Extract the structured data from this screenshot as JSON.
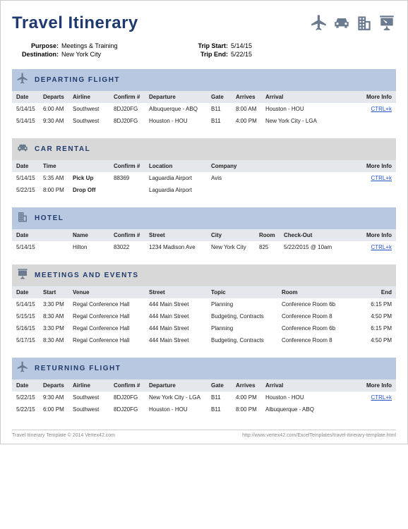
{
  "title": "Travel Itinerary",
  "meta": {
    "purpose_label": "Purpose:",
    "purpose": "Meetings & Training",
    "dest_label": "Destination:",
    "dest": "New York City",
    "start_label": "Trip Start:",
    "start": "5/14/15",
    "end_label": "Trip End:",
    "end": "5/22/15"
  },
  "link_text": "CTRL+k",
  "departing": {
    "title": "DEPARTING FLIGHT",
    "cols": [
      "Date",
      "Departs",
      "Airline",
      "Confirm #",
      "Departure",
      "Gate",
      "Arrives",
      "Arrival",
      "More Info"
    ],
    "rows": [
      [
        "5/14/15",
        "6:00 AM",
        "Southwest",
        "8DJ20FG",
        "Albuquerque - ABQ",
        "B11",
        "8:00 AM",
        "Houston - HOU"
      ],
      [
        "5/14/15",
        "9:30 AM",
        "Southwest",
        "8DJ20FG",
        "Houston - HOU",
        "B11",
        "4:00 PM",
        "New York City - LGA"
      ]
    ]
  },
  "car": {
    "title": "CAR RENTAL",
    "cols": [
      "Date",
      "Time",
      "",
      "Confirm #",
      "Location",
      "Company",
      "More Info"
    ],
    "rows": [
      [
        "5/14/15",
        "5:35 AM",
        "Pick Up",
        "88369",
        "Laguardia Airport",
        "Avis"
      ],
      [
        "5/22/15",
        "8:00 PM",
        "Drop Off",
        "",
        "Laguardia Airport",
        ""
      ]
    ]
  },
  "hotel": {
    "title": "HOTEL",
    "cols": [
      "Date",
      "",
      "Name",
      "Confirm #",
      "Street",
      "City",
      "Room",
      "Check-Out",
      "More Info"
    ],
    "rows": [
      [
        "5/14/15",
        "",
        "Hilton",
        "83022",
        "1234 Madison Ave",
        "New York City",
        "825",
        "5/22/2015 @ 10am"
      ]
    ]
  },
  "meetings": {
    "title": "MEETINGS AND EVENTS",
    "cols": [
      "Date",
      "Start",
      "Venue",
      "Street",
      "Topic",
      "Room",
      "End"
    ],
    "rows": [
      [
        "5/14/15",
        "3:30 PM",
        "Regal Conference Hall",
        "444 Main Street",
        "Planning",
        "Conference Room 6b",
        "6:15 PM"
      ],
      [
        "5/15/15",
        "8:30 AM",
        "Regal Conference Hall",
        "444 Main Street",
        "Budgeting, Contracts",
        "Conference Room 8",
        "4:50 PM"
      ],
      [
        "5/16/15",
        "3:30 PM",
        "Regal Conference Hall",
        "444 Main Street",
        "Planning",
        "Conference Room 6b",
        "6:15 PM"
      ],
      [
        "5/17/15",
        "8:30 AM",
        "Regal Conference Hall",
        "444 Main Street",
        "Budgeting, Contracts",
        "Conference Room 8",
        "4:50 PM"
      ]
    ]
  },
  "returning": {
    "title": "RETURNING FLIGHT",
    "cols": [
      "Date",
      "Departs",
      "Airline",
      "Confirm #",
      "Departure",
      "Gate",
      "Arrives",
      "Arrival",
      "More Info"
    ],
    "rows": [
      [
        "5/22/15",
        "9:30 AM",
        "Southwest",
        "8DJ20FG",
        "New York City - LGA",
        "B11",
        "4:00 PM",
        "Houston - HOU"
      ],
      [
        "5/22/15",
        "6:00 PM",
        "Southwest",
        "8DJ20FG",
        "Houston - HOU",
        "B11",
        "8:00 PM",
        "Albuquerque - ABQ"
      ]
    ]
  },
  "footer": {
    "left": "Travel Itinerary Template © 2014 Vertex42.com",
    "right": "http://www.vertex42.com/ExcelTemplates/travel-itinerary-template.html"
  }
}
